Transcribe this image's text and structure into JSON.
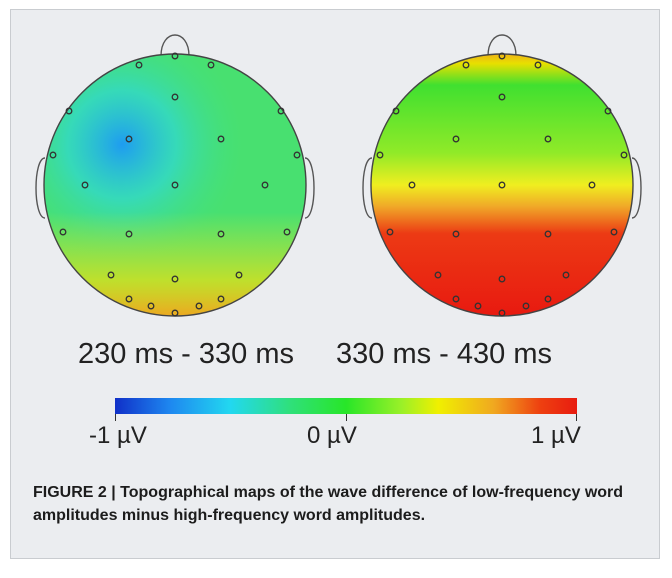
{
  "figure": {
    "maps": [
      {
        "label": "230 ms - 330 ms"
      },
      {
        "label": "330 ms - 430 ms"
      }
    ],
    "colorbar": {
      "min_label": "-1 µV",
      "mid_label": "0 µV",
      "max_label": "1 µV",
      "colors": [
        "#1030c8",
        "#1e88f0",
        "#22d8f0",
        "#2fe07a",
        "#28e628",
        "#9af028",
        "#f0f000",
        "#f0a820",
        "#ee4010",
        "#e81c10"
      ]
    },
    "caption": "FIGURE 2 | Topographical maps of the wave difference of low-frequency word amplitudes minus high-frequency word amplitudes."
  }
}
